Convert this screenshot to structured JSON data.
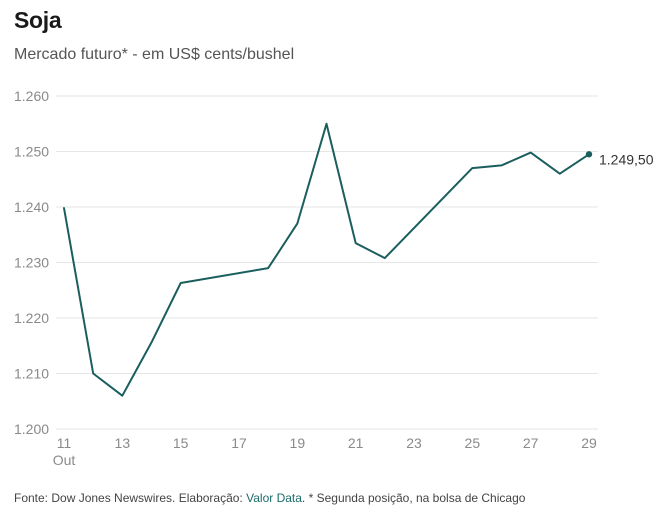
{
  "chart_data": {
    "type": "line",
    "title": "Soja",
    "subtitle": "Mercado futuro* - em US$ cents/bushel",
    "x": [
      11,
      12,
      13,
      14,
      15,
      18,
      19,
      20,
      21,
      22,
      25,
      26,
      27,
      28,
      29
    ],
    "series": [
      {
        "name": "Soja",
        "values": [
          1239.8,
          1210.0,
          1206.0,
          1215.6,
          1226.3,
          1229.0,
          1237.0,
          1255.0,
          1233.5,
          1230.8,
          1247.0,
          1247.5,
          1249.8,
          1246.0,
          1249.5
        ]
      }
    ],
    "x_ticks": [
      11,
      13,
      15,
      17,
      19,
      21,
      23,
      25,
      27,
      29
    ],
    "x_tick_labels": [
      "11",
      "13",
      "15",
      "17",
      "19",
      "21",
      "23",
      "25",
      "27",
      "29"
    ],
    "x_sub_label": "Out",
    "y_ticks": [
      1200,
      1210,
      1220,
      1230,
      1240,
      1250,
      1260
    ],
    "y_tick_labels": [
      "1.200",
      "1.210",
      "1.220",
      "1.230",
      "1.240",
      "1.250",
      "1.260"
    ],
    "xlim": [
      11,
      29
    ],
    "ylim": [
      1200,
      1260
    ],
    "grid": true,
    "last_value_label": "1.249,50",
    "line_color": "#1b5e5e",
    "grid_color": "#e6e6e6"
  },
  "footer": {
    "prefix": "Fonte: Dow Jones Newswires. Elaboração: ",
    "link": "Valor Data",
    "suffix": ". * Segunda posição, na bolsa de Chicago"
  }
}
